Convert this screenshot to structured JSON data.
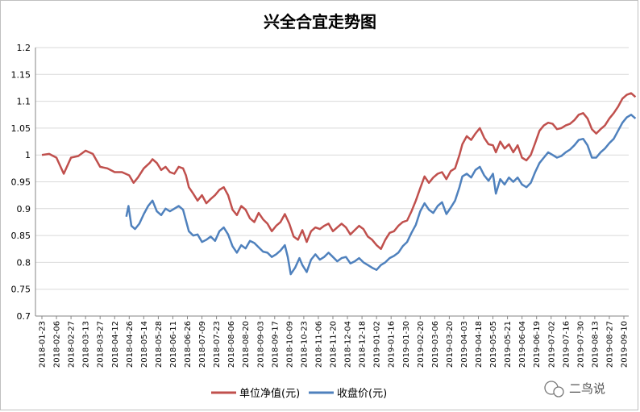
{
  "chart_data": {
    "type": "line",
    "title": "兴全合宜走势图",
    "ylim": [
      0.7,
      1.2
    ],
    "yticks": [
      "0.7",
      "0.75",
      "0.8",
      "0.85",
      "0.9",
      "0.95",
      "1",
      "1.05",
      "1.1",
      "1.15",
      "1.2"
    ],
    "xticks": [
      "2018-01-23",
      "2018-02-06",
      "2018-02-27",
      "2018-03-13",
      "2018-03-27",
      "2018-04-12",
      "2018-04-26",
      "2018-05-14",
      "2018-05-28",
      "2018-06-11",
      "2018-06-26",
      "2018-07-09",
      "2018-07-23",
      "2018-08-06",
      "2018-08-20",
      "2018-09-03",
      "2018-09-17",
      "2018-10-09",
      "2018-10-23",
      "2018-11-06",
      "2018-11-20",
      "2018-12-04",
      "2018-12-18",
      "2019-01-02",
      "2019-01-16",
      "2019-01-30",
      "2019-02-20",
      "2019-03-06",
      "2019-03-20",
      "2019-04-03",
      "2019-04-18",
      "2019-05-05",
      "2019-05-21",
      "2019-06-04",
      "2019-06-19",
      "2019-07-02",
      "2019-07-16",
      "2019-07-30",
      "2019-08-13",
      "2019-08-27",
      "2019-09-10"
    ],
    "grid": true,
    "legend": "bottom",
    "series": [
      {
        "name": "单位净值(元)",
        "color": "#C0504D",
        "points": [
          [
            0,
            1.0
          ],
          [
            0.5,
            1.002
          ],
          [
            1,
            0.995
          ],
          [
            1.5,
            0.965
          ],
          [
            2,
            0.995
          ],
          [
            2.5,
            0.998
          ],
          [
            3,
            1.008
          ],
          [
            3.5,
            1.002
          ],
          [
            4,
            0.978
          ],
          [
            4.5,
            0.975
          ],
          [
            5,
            0.968
          ],
          [
            5.5,
            0.968
          ],
          [
            6,
            0.962
          ],
          [
            6.3,
            0.948
          ],
          [
            6.6,
            0.958
          ],
          [
            7,
            0.975
          ],
          [
            7.4,
            0.985
          ],
          [
            7.6,
            0.992
          ],
          [
            7.9,
            0.985
          ],
          [
            8.2,
            0.972
          ],
          [
            8.5,
            0.978
          ],
          [
            8.8,
            0.968
          ],
          [
            9.1,
            0.965
          ],
          [
            9.4,
            0.978
          ],
          [
            9.7,
            0.975
          ],
          [
            9.9,
            0.962
          ],
          [
            10.1,
            0.94
          ],
          [
            10.4,
            0.928
          ],
          [
            10.7,
            0.915
          ],
          [
            11,
            0.925
          ],
          [
            11.3,
            0.91
          ],
          [
            11.6,
            0.918
          ],
          [
            11.9,
            0.925
          ],
          [
            12.2,
            0.935
          ],
          [
            12.5,
            0.94
          ],
          [
            12.8,
            0.925
          ],
          [
            13.1,
            0.898
          ],
          [
            13.4,
            0.888
          ],
          [
            13.7,
            0.905
          ],
          [
            14,
            0.898
          ],
          [
            14.3,
            0.882
          ],
          [
            14.6,
            0.875
          ],
          [
            14.9,
            0.892
          ],
          [
            15.2,
            0.88
          ],
          [
            15.5,
            0.872
          ],
          [
            15.8,
            0.858
          ],
          [
            16.1,
            0.868
          ],
          [
            16.4,
            0.875
          ],
          [
            16.7,
            0.89
          ],
          [
            17,
            0.872
          ],
          [
            17.3,
            0.848
          ],
          [
            17.6,
            0.842
          ],
          [
            17.9,
            0.86
          ],
          [
            18.2,
            0.838
          ],
          [
            18.5,
            0.858
          ],
          [
            18.8,
            0.865
          ],
          [
            19.1,
            0.862
          ],
          [
            19.4,
            0.868
          ],
          [
            19.7,
            0.872
          ],
          [
            20,
            0.858
          ],
          [
            20.3,
            0.865
          ],
          [
            20.6,
            0.872
          ],
          [
            20.9,
            0.865
          ],
          [
            21.2,
            0.852
          ],
          [
            21.5,
            0.86
          ],
          [
            21.8,
            0.868
          ],
          [
            22.1,
            0.862
          ],
          [
            22.4,
            0.848
          ],
          [
            22.7,
            0.842
          ],
          [
            23,
            0.832
          ],
          [
            23.3,
            0.825
          ],
          [
            23.6,
            0.842
          ],
          [
            23.9,
            0.855
          ],
          [
            24.2,
            0.858
          ],
          [
            24.5,
            0.868
          ],
          [
            24.8,
            0.875
          ],
          [
            25.1,
            0.878
          ],
          [
            25.4,
            0.895
          ],
          [
            25.7,
            0.915
          ],
          [
            26,
            0.938
          ],
          [
            26.3,
            0.96
          ],
          [
            26.6,
            0.948
          ],
          [
            26.9,
            0.958
          ],
          [
            27.2,
            0.965
          ],
          [
            27.5,
            0.968
          ],
          [
            27.8,
            0.955
          ],
          [
            28.1,
            0.97
          ],
          [
            28.4,
            0.975
          ],
          [
            28.7,
            1.0
          ],
          [
            28.9,
            1.02
          ],
          [
            29.2,
            1.035
          ],
          [
            29.5,
            1.028
          ],
          [
            29.8,
            1.04
          ],
          [
            30.1,
            1.05
          ],
          [
            30.4,
            1.032
          ],
          [
            30.7,
            1.02
          ],
          [
            31,
            1.018
          ],
          [
            31.2,
            1.005
          ],
          [
            31.5,
            1.025
          ],
          [
            31.8,
            1.012
          ],
          [
            32.1,
            1.02
          ],
          [
            32.4,
            1.005
          ],
          [
            32.7,
            1.018
          ],
          [
            33,
            0.995
          ],
          [
            33.3,
            0.99
          ],
          [
            33.6,
            1.0
          ],
          [
            33.9,
            1.022
          ],
          [
            34.2,
            1.045
          ],
          [
            34.5,
            1.055
          ],
          [
            34.8,
            1.06
          ],
          [
            35.1,
            1.058
          ],
          [
            35.4,
            1.048
          ],
          [
            35.7,
            1.05
          ],
          [
            36,
            1.055
          ],
          [
            36.3,
            1.058
          ],
          [
            36.6,
            1.065
          ],
          [
            36.9,
            1.075
          ],
          [
            37.2,
            1.078
          ],
          [
            37.5,
            1.068
          ],
          [
            37.8,
            1.048
          ],
          [
            38.1,
            1.04
          ],
          [
            38.4,
            1.048
          ],
          [
            38.7,
            1.055
          ],
          [
            39,
            1.068
          ],
          [
            39.3,
            1.078
          ],
          [
            39.6,
            1.09
          ],
          [
            39.9,
            1.105
          ],
          [
            40.2,
            1.112
          ],
          [
            40.5,
            1.115
          ],
          [
            40.8,
            1.108
          ]
        ]
      },
      {
        "name": "收盘价(元)",
        "color": "#4F81BD",
        "points": [
          [
            5.8,
            0.885
          ],
          [
            5.95,
            0.905
          ],
          [
            6.15,
            0.868
          ],
          [
            6.4,
            0.862
          ],
          [
            6.7,
            0.872
          ],
          [
            7,
            0.89
          ],
          [
            7.3,
            0.905
          ],
          [
            7.6,
            0.915
          ],
          [
            7.9,
            0.895
          ],
          [
            8.2,
            0.888
          ],
          [
            8.5,
            0.9
          ],
          [
            8.8,
            0.895
          ],
          [
            9.1,
            0.9
          ],
          [
            9.4,
            0.905
          ],
          [
            9.7,
            0.898
          ],
          [
            9.9,
            0.878
          ],
          [
            10.1,
            0.858
          ],
          [
            10.4,
            0.85
          ],
          [
            10.7,
            0.852
          ],
          [
            11,
            0.838
          ],
          [
            11.3,
            0.842
          ],
          [
            11.6,
            0.848
          ],
          [
            11.9,
            0.84
          ],
          [
            12.2,
            0.858
          ],
          [
            12.5,
            0.865
          ],
          [
            12.8,
            0.852
          ],
          [
            13.1,
            0.83
          ],
          [
            13.4,
            0.818
          ],
          [
            13.7,
            0.832
          ],
          [
            14,
            0.826
          ],
          [
            14.3,
            0.84
          ],
          [
            14.6,
            0.836
          ],
          [
            14.9,
            0.828
          ],
          [
            15.2,
            0.82
          ],
          [
            15.5,
            0.818
          ],
          [
            15.8,
            0.81
          ],
          [
            16.1,
            0.815
          ],
          [
            16.4,
            0.822
          ],
          [
            16.7,
            0.832
          ],
          [
            16.9,
            0.81
          ],
          [
            17.1,
            0.778
          ],
          [
            17.4,
            0.79
          ],
          [
            17.7,
            0.808
          ],
          [
            17.9,
            0.795
          ],
          [
            18.2,
            0.782
          ],
          [
            18.5,
            0.805
          ],
          [
            18.8,
            0.815
          ],
          [
            19.1,
            0.805
          ],
          [
            19.4,
            0.81
          ],
          [
            19.7,
            0.818
          ],
          [
            20,
            0.81
          ],
          [
            20.3,
            0.802
          ],
          [
            20.6,
            0.808
          ],
          [
            20.9,
            0.81
          ],
          [
            21.2,
            0.798
          ],
          [
            21.5,
            0.802
          ],
          [
            21.8,
            0.808
          ],
          [
            22.1,
            0.8
          ],
          [
            22.4,
            0.795
          ],
          [
            22.7,
            0.79
          ],
          [
            23,
            0.786
          ],
          [
            23.3,
            0.795
          ],
          [
            23.6,
            0.8
          ],
          [
            23.9,
            0.808
          ],
          [
            24.2,
            0.812
          ],
          [
            24.5,
            0.818
          ],
          [
            24.8,
            0.83
          ],
          [
            25.1,
            0.838
          ],
          [
            25.4,
            0.855
          ],
          [
            25.7,
            0.87
          ],
          [
            26,
            0.895
          ],
          [
            26.3,
            0.91
          ],
          [
            26.6,
            0.898
          ],
          [
            26.9,
            0.892
          ],
          [
            27.2,
            0.905
          ],
          [
            27.5,
            0.912
          ],
          [
            27.8,
            0.89
          ],
          [
            28.1,
            0.902
          ],
          [
            28.4,
            0.915
          ],
          [
            28.7,
            0.94
          ],
          [
            28.9,
            0.96
          ],
          [
            29.2,
            0.965
          ],
          [
            29.5,
            0.958
          ],
          [
            29.8,
            0.972
          ],
          [
            30.1,
            0.978
          ],
          [
            30.4,
            0.962
          ],
          [
            30.7,
            0.952
          ],
          [
            31,
            0.965
          ],
          [
            31.2,
            0.928
          ],
          [
            31.5,
            0.955
          ],
          [
            31.8,
            0.945
          ],
          [
            32.1,
            0.958
          ],
          [
            32.4,
            0.95
          ],
          [
            32.7,
            0.958
          ],
          [
            33,
            0.945
          ],
          [
            33.3,
            0.94
          ],
          [
            33.6,
            0.948
          ],
          [
            33.9,
            0.968
          ],
          [
            34.2,
            0.985
          ],
          [
            34.5,
            0.995
          ],
          [
            34.8,
            1.005
          ],
          [
            35.1,
            1.0
          ],
          [
            35.4,
            0.995
          ],
          [
            35.7,
            0.998
          ],
          [
            36,
            1.005
          ],
          [
            36.3,
            1.01
          ],
          [
            36.6,
            1.018
          ],
          [
            36.9,
            1.028
          ],
          [
            37.2,
            1.03
          ],
          [
            37.5,
            1.018
          ],
          [
            37.8,
            0.995
          ],
          [
            38.1,
            0.995
          ],
          [
            38.4,
            1.005
          ],
          [
            38.7,
            1.012
          ],
          [
            39,
            1.022
          ],
          [
            39.3,
            1.03
          ],
          [
            39.6,
            1.045
          ],
          [
            39.9,
            1.06
          ],
          [
            40.2,
            1.07
          ],
          [
            40.5,
            1.075
          ],
          [
            40.8,
            1.068
          ]
        ]
      }
    ]
  },
  "watermark": {
    "text": "二鸟说"
  },
  "colors": {
    "grid": "#d9d9d9",
    "axis": "#868686",
    "border": "#bfbfbf"
  }
}
